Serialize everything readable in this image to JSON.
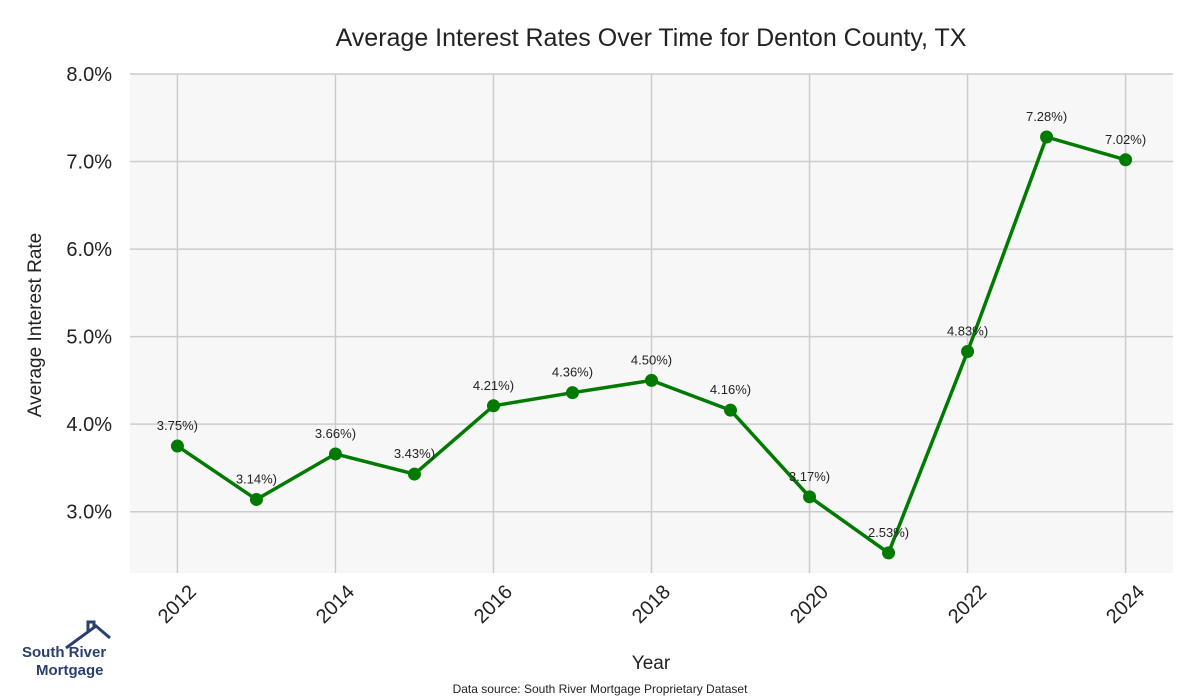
{
  "chart_data": {
    "type": "line",
    "title": "Average Interest Rates Over Time for Denton County, TX",
    "xlabel": "Year",
    "ylabel": "Average Interest Rate",
    "x": [
      2012,
      2013,
      2014,
      2015,
      2016,
      2017,
      2018,
      2019,
      2020,
      2021,
      2022,
      2023,
      2024
    ],
    "values": [
      3.75,
      3.14,
      3.66,
      3.43,
      4.21,
      4.36,
      4.5,
      4.16,
      3.17,
      2.53,
      4.83,
      7.28,
      7.02
    ],
    "data_labels": [
      "3.75%)",
      "3.14%)",
      "3.66%)",
      "3.43%)",
      "4.21%)",
      "4.36%)",
      "4.50%)",
      "4.16%)",
      "3.17%)",
      "2.53%)",
      "4.83%)",
      "7.28%)",
      "7.02%)"
    ],
    "xticks": [
      "2012",
      "2014",
      "2016",
      "2018",
      "2020",
      "2022",
      "2024"
    ],
    "yticks": [
      "3.0%",
      "4.0%",
      "5.0%",
      "6.0%",
      "7.0%",
      "8.0%"
    ],
    "ytick_values": [
      3,
      4,
      5,
      6,
      7,
      8
    ],
    "xlim": [
      2011.4,
      2024.6
    ],
    "ylim": [
      2.3,
      8.0
    ],
    "grid": true,
    "line_color": "#007a00",
    "plot_background": "#f7f7f7",
    "grid_color": "#cccccc"
  },
  "footer": {
    "source": "Data source: South River Mortgage Proprietary Dataset"
  },
  "logo": {
    "line1": "South River",
    "line2": "Mortgage",
    "icon": "house-roof-icon"
  }
}
